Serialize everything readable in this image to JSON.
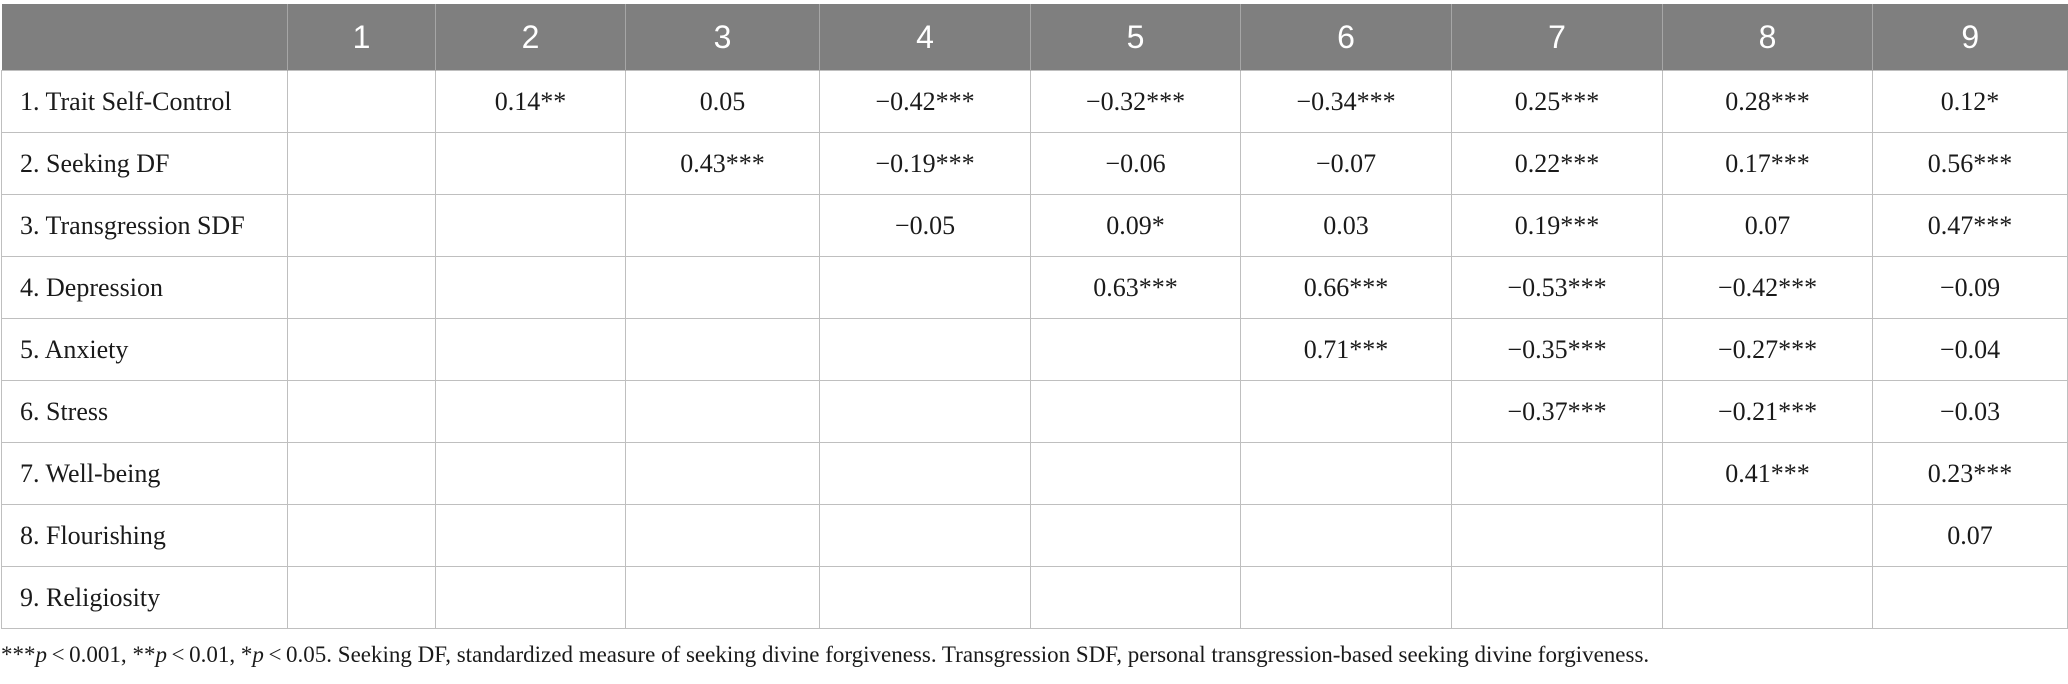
{
  "table": {
    "headers": [
      "",
      "1",
      "2",
      "3",
      "4",
      "5",
      "6",
      "7",
      "8",
      "9"
    ],
    "rows": [
      {
        "label": "1. Trait Self-Control",
        "values": [
          "",
          "0.14**",
          "0.05",
          "−0.42***",
          "−0.32***",
          "−0.34***",
          "0.25***",
          "0.28***",
          "0.12*"
        ]
      },
      {
        "label": "2. Seeking DF",
        "values": [
          "",
          "",
          "0.43***",
          "−0.19***",
          "−0.06",
          "−0.07",
          "0.22***",
          "0.17***",
          "0.56***"
        ]
      },
      {
        "label": "3. Transgression SDF",
        "values": [
          "",
          "",
          "",
          "−0.05",
          "0.09*",
          "0.03",
          "0.19***",
          "0.07",
          "0.47***"
        ]
      },
      {
        "label": "4. Depression",
        "values": [
          "",
          "",
          "",
          "",
          "0.63***",
          "0.66***",
          "−0.53***",
          "−0.42***",
          "−0.09"
        ]
      },
      {
        "label": "5. Anxiety",
        "values": [
          "",
          "",
          "",
          "",
          "",
          "0.71***",
          "−0.35***",
          "−0.27***",
          "−0.04"
        ]
      },
      {
        "label": "6. Stress",
        "values": [
          "",
          "",
          "",
          "",
          "",
          "",
          "−0.37***",
          "−0.21***",
          "−0.03"
        ]
      },
      {
        "label": "7. Well-being",
        "values": [
          "",
          "",
          "",
          "",
          "",
          "",
          "",
          "0.41***",
          "0.23***"
        ]
      },
      {
        "label": "8. Flourishing",
        "values": [
          "",
          "",
          "",
          "",
          "",
          "",
          "",
          "",
          "0.07"
        ]
      },
      {
        "label": "9. Religiosity",
        "values": [
          "",
          "",
          "",
          "",
          "",
          "",
          "",
          "",
          ""
        ]
      }
    ]
  },
  "footnote": {
    "p1_stars": "***",
    "p1_var": "p",
    "p1_val": " < 0.001, ",
    "p2_stars": "**",
    "p2_var": "p",
    "p2_val": " < 0.01, ",
    "p3_stars": "*",
    "p3_var": "p",
    "p3_val": " < 0.05. Seeking DF, standardized measure of seeking divine forgiveness. Transgression SDF, personal transgression-based seeking divine forgiveness."
  },
  "colors": {
    "header_bg": "#7f7f7f",
    "header_text": "#ffffff",
    "grid": "#bfbfbf"
  }
}
